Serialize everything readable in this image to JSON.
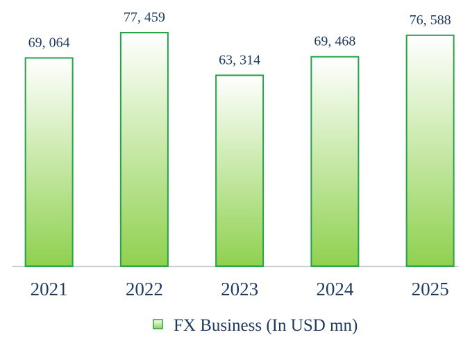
{
  "chart_data": {
    "type": "bar",
    "categories": [
      "2021",
      "2022",
      "2023",
      "2024",
      "2025"
    ],
    "values": [
      69064,
      77459,
      63314,
      69468,
      76588
    ],
    "value_labels": [
      "69, 064",
      "77, 459",
      "63, 314",
      "69, 468",
      "76, 588"
    ],
    "series_name": "FX Business (In USD mn)",
    "color": "#8fd14f",
    "border_color": "#22a447"
  }
}
